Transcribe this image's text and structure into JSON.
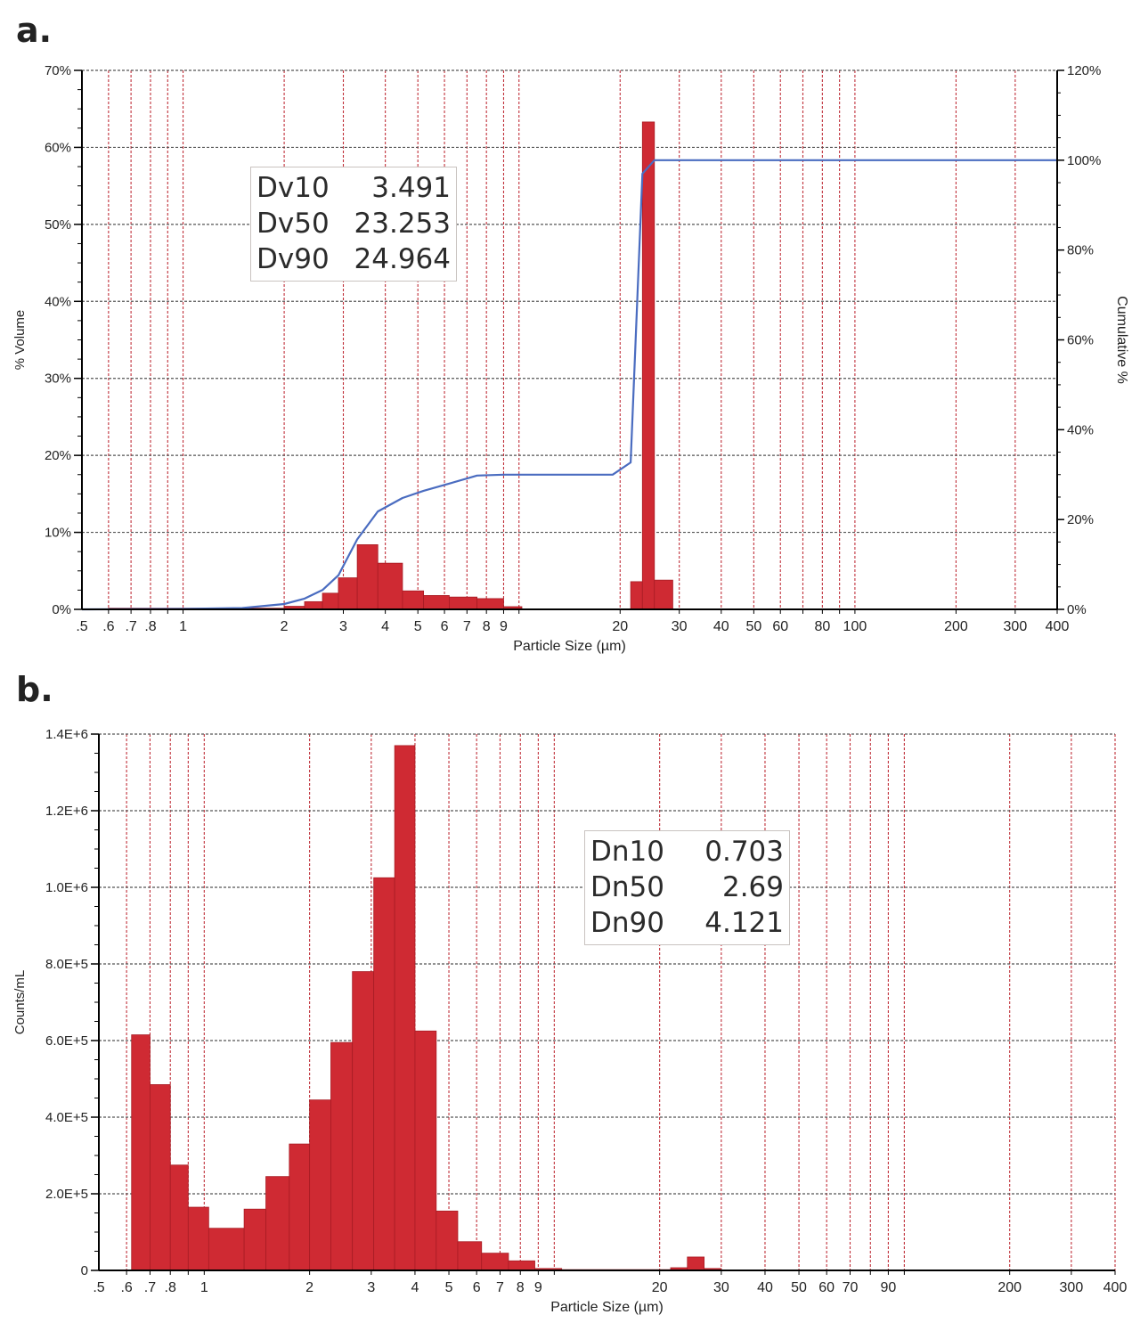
{
  "chart_data": [
    {
      "panel": "a.",
      "type": "bar",
      "xlabel": "Particle Size (µm)",
      "ylabel": "% Volume",
      "y2label": "Cumulative %",
      "xscale": "log",
      "xlim": [
        0.5,
        400
      ],
      "ylim": [
        0,
        70
      ],
      "y2lim": [
        0,
        120
      ],
      "grid": true,
      "xticks": [
        {
          "v": 0.5,
          "label": ".5"
        },
        {
          "v": 0.6,
          "label": ".6"
        },
        {
          "v": 0.7,
          "label": ".7"
        },
        {
          "v": 0.8,
          "label": ".8"
        },
        {
          "v": 1,
          "label": "1"
        },
        {
          "v": 2,
          "label": "2"
        },
        {
          "v": 3,
          "label": "3"
        },
        {
          "v": 4,
          "label": "4"
        },
        {
          "v": 5,
          "label": "5"
        },
        {
          "v": 6,
          "label": "6"
        },
        {
          "v": 7,
          "label": "7"
        },
        {
          "v": 8,
          "label": "8"
        },
        {
          "v": 9,
          "label": "9"
        },
        {
          "v": 20,
          "label": "20"
        },
        {
          "v": 30,
          "label": "30"
        },
        {
          "v": 40,
          "label": "40"
        },
        {
          "v": 50,
          "label": "50"
        },
        {
          "v": 60,
          "label": "60"
        },
        {
          "v": 80,
          "label": "80"
        },
        {
          "v": 100,
          "label": "100"
        },
        {
          "v": 200,
          "label": "200"
        },
        {
          "v": 300,
          "label": "300"
        },
        {
          "v": 400,
          "label": "400"
        }
      ],
      "gridx": [
        0.6,
        0.7,
        0.8,
        0.9,
        1,
        2,
        3,
        4,
        5,
        6,
        7,
        8,
        9,
        10,
        20,
        30,
        40,
        50,
        60,
        70,
        80,
        90,
        100,
        200,
        300,
        400
      ],
      "yticks": [
        {
          "v": 0,
          "label": "0%"
        },
        {
          "v": 10,
          "label": "10%"
        },
        {
          "v": 20,
          "label": "20%"
        },
        {
          "v": 30,
          "label": "30%"
        },
        {
          "v": 40,
          "label": "40%"
        },
        {
          "v": 50,
          "label": "50%"
        },
        {
          "v": 60,
          "label": "60%"
        },
        {
          "v": 70,
          "label": "70%"
        }
      ],
      "y2ticks": [
        {
          "v": 0,
          "label": "0%"
        },
        {
          "v": 20,
          "label": "20%"
        },
        {
          "v": 40,
          "label": "40%"
        },
        {
          "v": 60,
          "label": "60%"
        },
        {
          "v": 80,
          "label": "80%"
        },
        {
          "v": 100,
          "label": "100%"
        },
        {
          "v": 120,
          "label": "120%"
        }
      ],
      "bars": [
        {
          "x0": 0.6,
          "x1": 2.0,
          "y": 0.15
        },
        {
          "x0": 2.0,
          "x1": 2.3,
          "y": 0.4
        },
        {
          "x0": 2.3,
          "x1": 2.6,
          "y": 1.0
        },
        {
          "x0": 2.6,
          "x1": 2.9,
          "y": 2.1
        },
        {
          "x0": 2.9,
          "x1": 3.3,
          "y": 4.1
        },
        {
          "x0": 3.3,
          "x1": 3.8,
          "y": 8.4
        },
        {
          "x0": 3.8,
          "x1": 4.5,
          "y": 6.0
        },
        {
          "x0": 4.5,
          "x1": 5.2,
          "y": 2.4
        },
        {
          "x0": 5.2,
          "x1": 6.2,
          "y": 1.8
        },
        {
          "x0": 6.2,
          "x1": 7.5,
          "y": 1.6
        },
        {
          "x0": 7.5,
          "x1": 9.0,
          "y": 1.4
        },
        {
          "x0": 9.0,
          "x1": 10.2,
          "y": 0.35
        },
        {
          "x0": 21.5,
          "x1": 23.3,
          "y": 3.6
        },
        {
          "x0": 23.3,
          "x1": 25.3,
          "y": 63.3
        },
        {
          "x0": 25.3,
          "x1": 28.7,
          "y": 3.8
        }
      ],
      "cumulative": [
        {
          "x": 0.5,
          "y": 0
        },
        {
          "x": 1.0,
          "y": 0.1
        },
        {
          "x": 1.5,
          "y": 0.3
        },
        {
          "x": 2.0,
          "y": 1.2
        },
        {
          "x": 2.3,
          "y": 2.4
        },
        {
          "x": 2.6,
          "y": 4.3
        },
        {
          "x": 2.9,
          "y": 7.6
        },
        {
          "x": 3.3,
          "y": 15.6
        },
        {
          "x": 3.8,
          "y": 21.8
        },
        {
          "x": 4.5,
          "y": 24.8
        },
        {
          "x": 5.2,
          "y": 26.4
        },
        {
          "x": 6.2,
          "y": 28.0
        },
        {
          "x": 7.5,
          "y": 29.8
        },
        {
          "x": 9.0,
          "y": 30.0
        },
        {
          "x": 10.2,
          "y": 30.0
        },
        {
          "x": 19.0,
          "y": 30.0
        },
        {
          "x": 21.5,
          "y": 32.7
        },
        {
          "x": 23.3,
          "y": 97.0
        },
        {
          "x": 25.3,
          "y": 100.0
        },
        {
          "x": 400,
          "y": 100.0
        }
      ],
      "stats": [
        {
          "label": "Dv10",
          "value": "3.491"
        },
        {
          "label": "Dv50",
          "value": "23.253"
        },
        {
          "label": "Dv90",
          "value": "24.964"
        }
      ]
    },
    {
      "panel": "b.",
      "type": "bar",
      "xlabel": "Particle Size (µm)",
      "ylabel": "Counts/mL",
      "xscale": "log",
      "xlim": [
        0.5,
        400
      ],
      "ylim": [
        0,
        1400000
      ],
      "grid": true,
      "xticks": [
        {
          "v": 0.5,
          "label": ".5"
        },
        {
          "v": 0.6,
          "label": ".6"
        },
        {
          "v": 0.7,
          "label": ".7"
        },
        {
          "v": 0.8,
          "label": ".8"
        },
        {
          "v": 1,
          "label": "1"
        },
        {
          "v": 2,
          "label": "2"
        },
        {
          "v": 3,
          "label": "3"
        },
        {
          "v": 4,
          "label": "4"
        },
        {
          "v": 5,
          "label": "5"
        },
        {
          "v": 6,
          "label": "6"
        },
        {
          "v": 7,
          "label": "7"
        },
        {
          "v": 8,
          "label": "8"
        },
        {
          "v": 9,
          "label": "9"
        },
        {
          "v": 20,
          "label": "20"
        },
        {
          "v": 30,
          "label": "30"
        },
        {
          "v": 40,
          "label": "40"
        },
        {
          "v": 50,
          "label": "50"
        },
        {
          "v": 60,
          "label": "60"
        },
        {
          "v": 70,
          "label": "70"
        },
        {
          "v": 90,
          "label": "90"
        },
        {
          "v": 200,
          "label": "200"
        },
        {
          "v": 300,
          "label": "300"
        },
        {
          "v": 400,
          "label": "400"
        }
      ],
      "gridx": [
        0.6,
        0.7,
        0.8,
        0.9,
        1,
        2,
        3,
        4,
        5,
        6,
        7,
        8,
        9,
        10,
        20,
        30,
        40,
        50,
        60,
        70,
        80,
        90,
        100,
        200,
        300,
        400
      ],
      "yticks": [
        {
          "v": 0,
          "label": "0"
        },
        {
          "v": 200000,
          "label": "2.0E+5"
        },
        {
          "v": 400000,
          "label": "4.0E+5"
        },
        {
          "v": 600000,
          "label": "6.0E+5"
        },
        {
          "v": 800000,
          "label": "8.0E+5"
        },
        {
          "v": 1000000,
          "label": "1.0E+6"
        },
        {
          "v": 1200000,
          "label": "1.2E+6"
        },
        {
          "v": 1400000,
          "label": "1.4E+6"
        }
      ],
      "bars": [
        {
          "x0": 0.62,
          "x1": 0.7,
          "y": 615000
        },
        {
          "x0": 0.7,
          "x1": 0.8,
          "y": 485000
        },
        {
          "x0": 0.8,
          "x1": 0.9,
          "y": 275000
        },
        {
          "x0": 0.9,
          "x1": 1.03,
          "y": 165000
        },
        {
          "x0": 1.03,
          "x1": 1.3,
          "y": 110000
        },
        {
          "x0": 1.3,
          "x1": 1.5,
          "y": 160000
        },
        {
          "x0": 1.5,
          "x1": 1.75,
          "y": 245000
        },
        {
          "x0": 1.75,
          "x1": 2.0,
          "y": 330000
        },
        {
          "x0": 2.0,
          "x1": 2.3,
          "y": 445000
        },
        {
          "x0": 2.3,
          "x1": 2.65,
          "y": 595000
        },
        {
          "x0": 2.65,
          "x1": 3.05,
          "y": 780000
        },
        {
          "x0": 3.05,
          "x1": 3.5,
          "y": 1025000
        },
        {
          "x0": 3.5,
          "x1": 4.0,
          "y": 1370000
        },
        {
          "x0": 4.0,
          "x1": 4.6,
          "y": 625000
        },
        {
          "x0": 4.6,
          "x1": 5.3,
          "y": 155000
        },
        {
          "x0": 5.3,
          "x1": 6.2,
          "y": 75000
        },
        {
          "x0": 6.2,
          "x1": 7.4,
          "y": 45000
        },
        {
          "x0": 7.4,
          "x1": 8.8,
          "y": 25000
        },
        {
          "x0": 8.8,
          "x1": 10.5,
          "y": 5000
        },
        {
          "x0": 10.5,
          "x1": 21.5,
          "y": 2000
        },
        {
          "x0": 21.5,
          "x1": 24.0,
          "y": 7000
        },
        {
          "x0": 24.0,
          "x1": 26.8,
          "y": 35000
        },
        {
          "x0": 26.8,
          "x1": 30.0,
          "y": 5000
        }
      ],
      "stats": [
        {
          "label": "Dn10",
          "value": "0.703"
        },
        {
          "label": "Dn50",
          "value": "2.69"
        },
        {
          "label": "Dn90",
          "value": "4.121"
        }
      ]
    }
  ],
  "colors": {
    "bar_fill": "#cf2a33",
    "bar_edge": "#a81c24",
    "cumulative_line": "#4a6cc0",
    "grid_vertical": "#c0303a",
    "grid_horizontal": "#555555",
    "axis": "#000000"
  }
}
